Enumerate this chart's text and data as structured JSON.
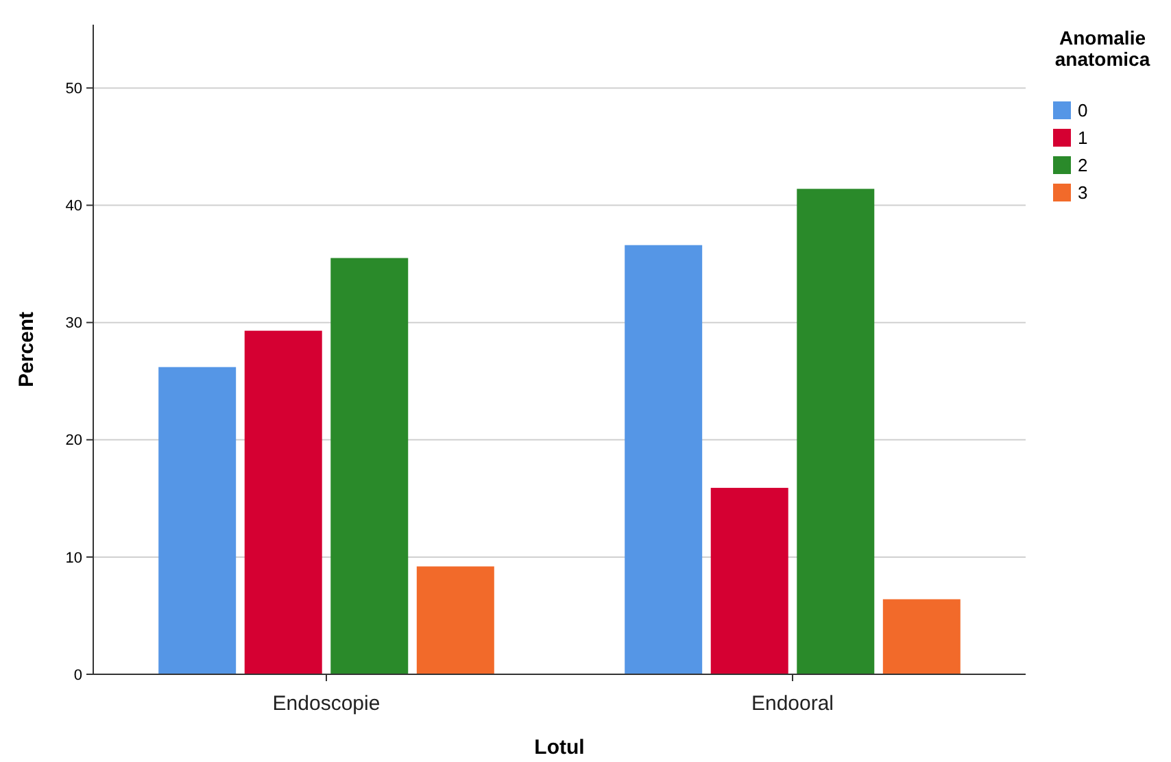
{
  "chart_data": {
    "type": "bar",
    "xlabel": "Lotul",
    "ylabel": "Percent",
    "legend_title": "Anomalie anatomica",
    "categories": [
      "Endoscopie",
      "Endooral"
    ],
    "series": [
      {
        "name": "0",
        "color": "#5596e6",
        "values": [
          26.2,
          36.6
        ]
      },
      {
        "name": "1",
        "color": "#d50032",
        "values": [
          29.3,
          15.9
        ]
      },
      {
        "name": "2",
        "color": "#2a8a2a",
        "values": [
          35.5,
          41.4
        ]
      },
      {
        "name": "3",
        "color": "#f26a2a",
        "values": [
          9.2,
          6.4
        ]
      }
    ],
    "ylim": [
      0,
      55.4
    ],
    "yticks": [
      0,
      10,
      20,
      30,
      40,
      50
    ],
    "grid": "y",
    "legend": "top right"
  }
}
